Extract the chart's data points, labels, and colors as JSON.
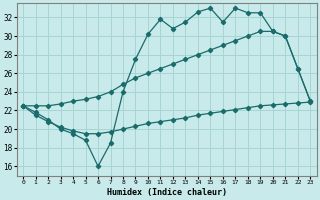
{
  "bg_color": "#c8eaea",
  "grid_color": "#a8d4d4",
  "line_color": "#1a6b6b",
  "xlabel": "Humidex (Indice chaleur)",
  "xlim": [
    -0.5,
    23.5
  ],
  "ylim": [
    15.0,
    33.5
  ],
  "xticks": [
    0,
    1,
    2,
    3,
    4,
    5,
    6,
    7,
    8,
    9,
    10,
    11,
    12,
    13,
    14,
    15,
    16,
    17,
    18,
    19,
    20,
    21,
    22,
    23
  ],
  "yticks": [
    16,
    18,
    20,
    22,
    24,
    26,
    28,
    30,
    32
  ],
  "line_top_x": [
    0,
    1,
    2,
    3,
    4,
    5,
    6,
    7,
    8,
    9,
    10,
    11,
    12,
    13,
    14,
    15,
    16,
    17,
    18,
    19,
    20,
    21,
    22,
    23
  ],
  "line_top_y": [
    22.5,
    21.8,
    21.0,
    20.0,
    19.5,
    18.8,
    16.0,
    18.5,
    24.0,
    27.5,
    30.2,
    31.8,
    30.8,
    31.5,
    32.6,
    33.0,
    31.5,
    33.0,
    32.5,
    32.5,
    30.5,
    30.0,
    26.5,
    23.0
  ],
  "line_mid_x": [
    0,
    1,
    2,
    3,
    4,
    5,
    6,
    7,
    8,
    9,
    10,
    11,
    12,
    13,
    14,
    15,
    16,
    17,
    18,
    19,
    20,
    21,
    22,
    23
  ],
  "line_mid_y": [
    22.5,
    22.5,
    22.5,
    22.7,
    23.0,
    23.2,
    23.5,
    24.0,
    24.8,
    25.5,
    26.0,
    26.5,
    27.0,
    27.5,
    28.0,
    28.5,
    29.0,
    29.5,
    30.0,
    30.5,
    30.5,
    30.0,
    26.5,
    23.0
  ],
  "line_bot_x": [
    0,
    1,
    2,
    3,
    4,
    5,
    6,
    7,
    8,
    9,
    10,
    11,
    12,
    13,
    14,
    15,
    16,
    17,
    18,
    19,
    20,
    21,
    22,
    23
  ],
  "line_bot_y": [
    22.5,
    21.5,
    20.8,
    20.2,
    19.8,
    19.5,
    19.5,
    19.7,
    20.0,
    20.3,
    20.6,
    20.8,
    21.0,
    21.2,
    21.5,
    21.7,
    21.9,
    22.1,
    22.3,
    22.5,
    22.6,
    22.7,
    22.8,
    22.9
  ]
}
